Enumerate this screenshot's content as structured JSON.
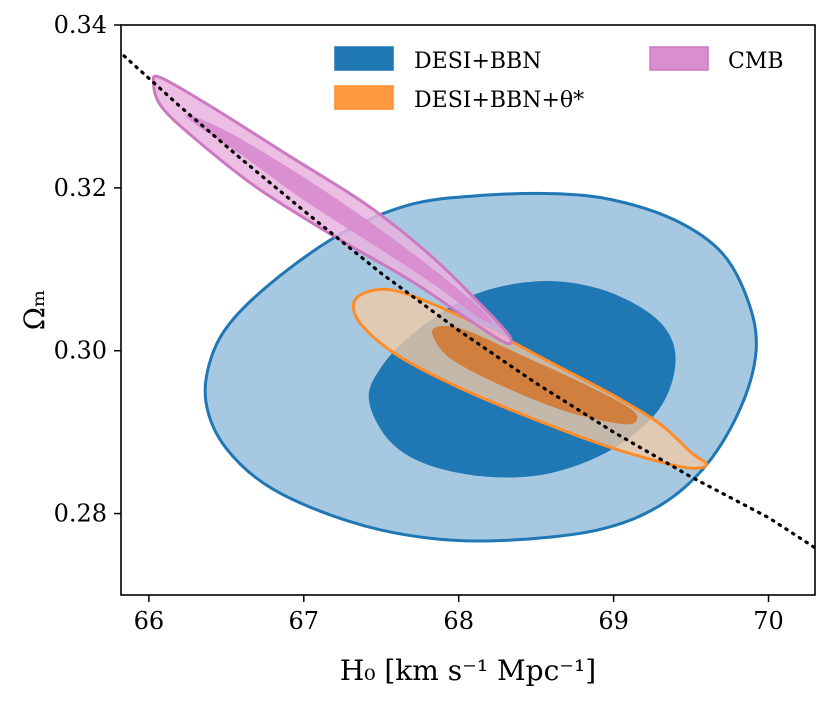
{
  "chart_data": {
    "type": "contour",
    "xlabel": "H₀ [km s⁻¹ Mpc⁻¹]",
    "ylabel": "Ωₘ",
    "xlim": [
      65.82,
      70.3
    ],
    "ylim": [
      0.27,
      0.34
    ],
    "xticks": [
      66,
      67,
      68,
      69,
      70
    ],
    "yticks": [
      0.28,
      0.3,
      0.32,
      0.34
    ],
    "ytick_labels": [
      "0.28",
      "0.30",
      "0.32",
      "0.34"
    ],
    "grid": false,
    "legend_position": "top-right",
    "colors": {
      "desi_outer": "#a6c8e1",
      "desi_inner": "#1f77b4",
      "desi_edge": "#1f77b4",
      "theta_outer": "#f2cba6",
      "theta_inner": "#d4742d",
      "theta_edge": "#ff8c2a",
      "cmb_outer": "#e9b3df",
      "cmb_inner": "#d88bcd",
      "cmb_edge": "#cc79c1"
    },
    "series": [
      {
        "name": "DESI+BBN",
        "legend_color": "#1f77b4",
        "levels": [
          {
            "level": "outer",
            "points": [
              [
                66.37,
                0.2935
              ],
              [
                66.4,
                0.299
              ],
              [
                66.55,
                0.304
              ],
              [
                66.9,
                0.31
              ],
              [
                67.3,
                0.315
              ],
              [
                67.7,
                0.318
              ],
              [
                68.1,
                0.319
              ],
              [
                68.6,
                0.3193
              ],
              [
                69.0,
                0.3185
              ],
              [
                69.4,
                0.316
              ],
              [
                69.7,
                0.312
              ],
              [
                69.87,
                0.306
              ],
              [
                69.92,
                0.3
              ],
              [
                69.82,
                0.293
              ],
              [
                69.6,
                0.286
              ],
              [
                69.3,
                0.281
              ],
              [
                68.9,
                0.278
              ],
              [
                68.3,
                0.2767
              ],
              [
                67.8,
                0.277
              ],
              [
                67.3,
                0.279
              ],
              [
                66.8,
                0.283
              ],
              [
                66.5,
                0.288
              ]
            ]
          },
          {
            "level": "inner",
            "points": [
              [
                67.42,
                0.294
              ],
              [
                67.5,
                0.298
              ],
              [
                67.7,
                0.302
              ],
              [
                68.0,
                0.306
              ],
              [
                68.3,
                0.308
              ],
              [
                68.65,
                0.3085
              ],
              [
                69.0,
                0.307
              ],
              [
                69.3,
                0.3035
              ],
              [
                69.4,
                0.299
              ],
              [
                69.3,
                0.293
              ],
              [
                69.0,
                0.288
              ],
              [
                68.6,
                0.285
              ],
              [
                68.2,
                0.2845
              ],
              [
                67.8,
                0.286
              ],
              [
                67.55,
                0.289
              ]
            ]
          }
        ]
      },
      {
        "name": "DESI+BBN+θ*",
        "legend_color": "#ff9a40",
        "levels": [
          {
            "level": "outer",
            "points": [
              [
                67.32,
                0.3055
              ],
              [
                67.38,
                0.307
              ],
              [
                67.55,
                0.3075
              ],
              [
                67.8,
                0.306
              ],
              [
                68.2,
                0.3025
              ],
              [
                68.6,
                0.2985
              ],
              [
                69.0,
                0.2945
              ],
              [
                69.3,
                0.291
              ],
              [
                69.5,
                0.2875
              ],
              [
                69.6,
                0.286
              ],
              [
                69.45,
                0.2857
              ],
              [
                69.0,
                0.288
              ],
              [
                68.5,
                0.2915
              ],
              [
                68.0,
                0.2955
              ],
              [
                67.6,
                0.2995
              ],
              [
                67.38,
                0.303
              ]
            ]
          },
          {
            "level": "inner",
            "points": [
              [
                67.83,
                0.302
              ],
              [
                67.88,
                0.303
              ],
              [
                68.05,
                0.3025
              ],
              [
                68.4,
                0.2995
              ],
              [
                68.8,
                0.296
              ],
              [
                69.1,
                0.293
              ],
              [
                69.15,
                0.2915
              ],
              [
                69.05,
                0.291
              ],
              [
                68.7,
                0.2925
              ],
              [
                68.3,
                0.2955
              ],
              [
                67.95,
                0.299
              ]
            ]
          }
        ]
      },
      {
        "name": "CMB",
        "legend_color": "#d98ecd",
        "levels": [
          {
            "level": "outer",
            "points": [
              [
                66.03,
                0.333
              ],
              [
                66.08,
                0.3335
              ],
              [
                66.4,
                0.33
              ],
              [
                66.9,
                0.324
              ],
              [
                67.4,
                0.318
              ],
              [
                67.8,
                0.312
              ],
              [
                68.1,
                0.3065
              ],
              [
                68.32,
                0.302
              ],
              [
                68.3,
                0.301
              ],
              [
                68.05,
                0.304
              ],
              [
                67.7,
                0.3085
              ],
              [
                67.2,
                0.314
              ],
              [
                66.7,
                0.32
              ],
              [
                66.3,
                0.326
              ],
              [
                66.08,
                0.33
              ]
            ]
          },
          {
            "level": "inner",
            "points": [
              [
                66.25,
                0.329
              ],
              [
                66.5,
                0.327
              ],
              [
                66.9,
                0.3225
              ],
              [
                67.3,
                0.3175
              ],
              [
                67.7,
                0.312
              ],
              [
                68.0,
                0.3075
              ],
              [
                68.2,
                0.304
              ],
              [
                68.15,
                0.3038
              ],
              [
                67.85,
                0.308
              ],
              [
                67.45,
                0.313
              ],
              [
                67.0,
                0.3185
              ],
              [
                66.6,
                0.324
              ],
              [
                66.3,
                0.3278
              ]
            ]
          }
        ]
      }
    ],
    "degeneracy_line": {
      "style": "dotted",
      "color": "#000000",
      "points": [
        [
          65.84,
          0.3362
        ],
        [
          66.2,
          0.33
        ],
        [
          66.6,
          0.3235
        ],
        [
          67.0,
          0.3172
        ],
        [
          67.5,
          0.3095
        ],
        [
          68.0,
          0.3025
        ],
        [
          68.5,
          0.296
        ],
        [
          69.0,
          0.29
        ],
        [
          69.5,
          0.2845
        ],
        [
          70.0,
          0.2795
        ],
        [
          70.3,
          0.2758
        ]
      ]
    }
  }
}
